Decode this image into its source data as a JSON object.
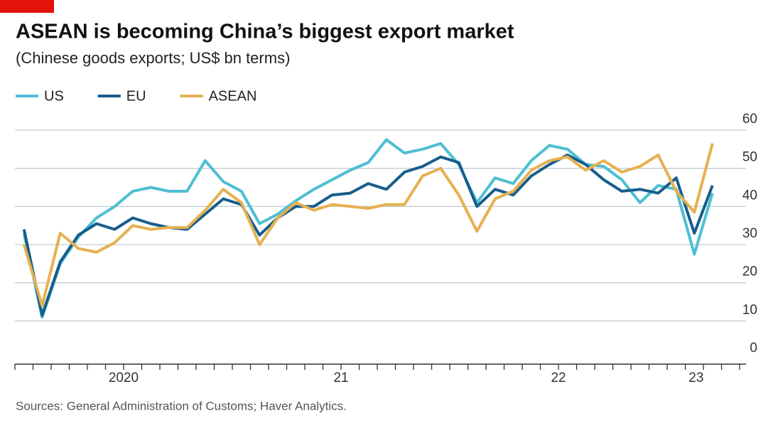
{
  "chart_data": {
    "type": "line",
    "title": "ASEAN is becoming China’s biggest export market",
    "subtitle": "(Chinese goods exports; US$ bn terms)",
    "source": "Sources: General Administration of Customs; Haver Analytics.",
    "x": [
      0,
      1,
      2,
      3,
      4,
      5,
      6,
      7,
      8,
      9,
      10,
      11,
      12,
      13,
      14,
      15,
      16,
      17,
      18,
      19,
      20,
      21,
      22,
      23,
      24,
      25,
      26,
      27,
      28,
      29,
      30,
      31,
      32,
      33,
      34,
      35,
      36,
      37,
      38
    ],
    "xlim": [
      -0.5,
      39.85
    ],
    "xticks": [
      {
        "value": 5.5,
        "label": "2020"
      },
      {
        "value": 17.5,
        "label": "21"
      },
      {
        "value": 29.5,
        "label": "22"
      },
      {
        "value": 37.1,
        "label": "23"
      }
    ],
    "ylim": [
      0,
      60
    ],
    "yticks": [
      0,
      10,
      20,
      30,
      40,
      50,
      60
    ],
    "grid": true,
    "series": [
      {
        "name": "US",
        "color": "#4dbfd3",
        "values": [
          33,
          11,
          25,
          32,
          37,
          40,
          44,
          45,
          44,
          44,
          52,
          46.5,
          44,
          35.5,
          38,
          41.5,
          44.5,
          47,
          49.5,
          51.5,
          57.5,
          54,
          55,
          56.5,
          51,
          41,
          47.5,
          46,
          52,
          56,
          55,
          51,
          50.5,
          47,
          41,
          45.5,
          44.5,
          27.5,
          43.5
        ]
      },
      {
        "name": "EU",
        "color": "#175e8c",
        "values": [
          34,
          11.5,
          25.5,
          32.5,
          35.5,
          34,
          37,
          35.5,
          34.5,
          34,
          38,
          42,
          40.5,
          32.5,
          37,
          40,
          40,
          43,
          43.5,
          46,
          44.5,
          49,
          50.5,
          53,
          51.5,
          40,
          44.5,
          43,
          48,
          51,
          53.5,
          51,
          47,
          44,
          44.5,
          43.5,
          47.5,
          33,
          45.5
        ]
      },
      {
        "name": "ASEAN",
        "color": "#e6b151",
        "values": [
          30,
          14,
          33,
          29,
          28,
          30.5,
          35,
          34,
          34.5,
          34.5,
          39,
          44.5,
          41,
          30,
          37,
          41,
          39,
          40.5,
          40,
          39.5,
          40.5,
          40.5,
          48,
          50,
          43,
          33.5,
          42,
          44,
          49.5,
          52,
          53,
          49.5,
          52,
          49,
          50.5,
          53.5,
          44,
          38.5,
          56.5
        ]
      }
    ]
  }
}
